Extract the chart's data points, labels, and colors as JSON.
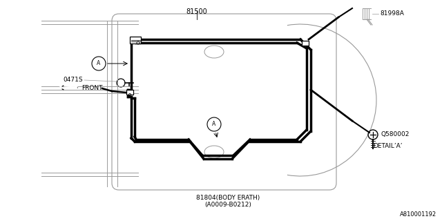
{
  "bg_color": "#ffffff",
  "line_color": "#000000",
  "thin_line_color": "#999999",
  "title_bottom": "81804(BODY ERATH)",
  "title_bottom2": "(A0009-B0212)",
  "label_81500": "81500",
  "label_81998A": "81998A",
  "label_0471S": "0471S",
  "label_Q580002": "Q580002",
  "label_detail": "DETAIL’A’",
  "label_part_num": "A810001192",
  "label_A": "A"
}
